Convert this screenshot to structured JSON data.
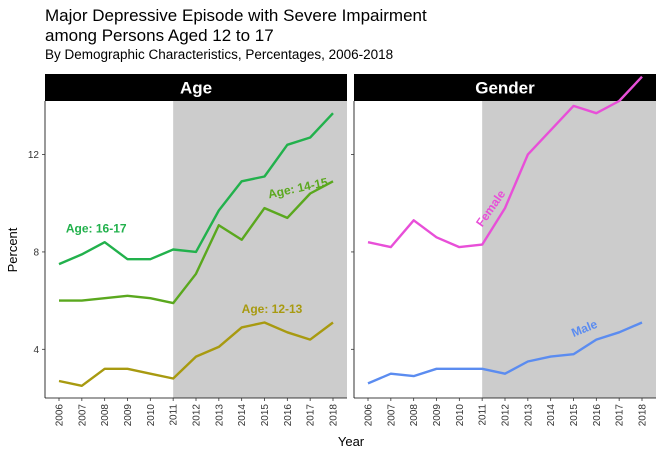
{
  "title_line1": "Major Depressive Episode with Severe Impairment",
  "title_line2": "among Persons Aged 12 to 17",
  "subtitle": "By Demographic Characteristics, Percentages, 2006-2018",
  "colors": {
    "strip_bg": "#000000",
    "shade": "#cccccc",
    "age_16_17": "#22b14c",
    "age_14_15": "#5aa81e",
    "age_12_13": "#a89a10",
    "female": "#e84fd8",
    "male": "#5b8cf0"
  },
  "chart_data": [
    {
      "type": "line",
      "panel": "Age",
      "xlabel": "Year",
      "ylabel": "Percent",
      "x": [
        2006,
        2007,
        2008,
        2009,
        2010,
        2011,
        2012,
        2013,
        2014,
        2015,
        2016,
        2017,
        2018
      ],
      "ylim": [
        2,
        14.2
      ],
      "yticks": [
        4,
        8,
        12
      ],
      "shaded_from": 2011,
      "grid": false,
      "series": [
        {
          "name": "Age: 16-17",
          "color_key": "age_16_17",
          "values": [
            7.5,
            7.9,
            8.4,
            7.7,
            7.7,
            8.1,
            8.0,
            9.7,
            10.9,
            11.1,
            12.4,
            12.7,
            13.7
          ]
        },
        {
          "name": "Age: 14-15",
          "color_key": "age_14_15",
          "values": [
            6.0,
            6.0,
            6.1,
            6.2,
            6.1,
            5.9,
            7.1,
            9.1,
            8.5,
            9.8,
            9.4,
            10.4,
            10.9
          ]
        },
        {
          "name": "Age: 12-13",
          "color_key": "age_12_13",
          "values": [
            2.7,
            2.5,
            3.2,
            3.2,
            3.0,
            2.8,
            3.7,
            4.1,
            4.9,
            5.1,
            4.7,
            4.4,
            5.1
          ]
        }
      ]
    },
    {
      "type": "line",
      "panel": "Gender",
      "xlabel": "Year",
      "ylabel": "Percent",
      "x": [
        2006,
        2007,
        2008,
        2009,
        2010,
        2011,
        2012,
        2013,
        2014,
        2015,
        2016,
        2017,
        2018
      ],
      "ylim": [
        2,
        14.2
      ],
      "yticks": [
        4,
        8,
        12
      ],
      "shaded_from": 2011,
      "grid": false,
      "series": [
        {
          "name": "Female",
          "color_key": "female",
          "values": [
            8.4,
            8.2,
            9.3,
            8.6,
            8.2,
            8.3,
            9.8,
            12.0,
            13.0,
            14.0,
            13.7,
            14.2,
            15.2
          ]
        },
        {
          "name": "Male",
          "color_key": "male",
          "values": [
            2.6,
            3.0,
            2.9,
            3.2,
            3.2,
            3.2,
            3.0,
            3.5,
            3.7,
            3.8,
            4.4,
            4.7,
            5.1
          ]
        }
      ]
    }
  ]
}
